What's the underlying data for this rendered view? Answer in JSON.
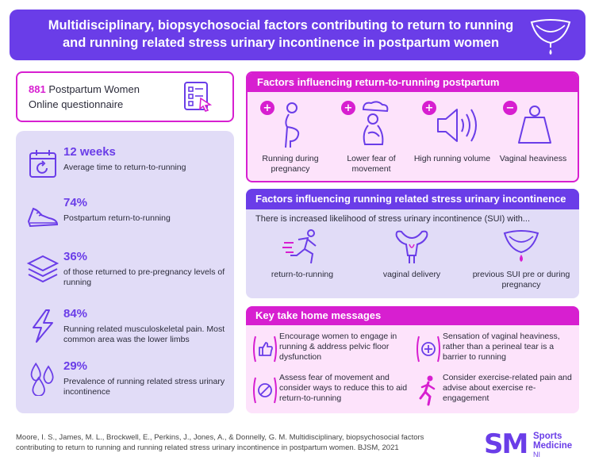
{
  "header": {
    "title_line1": "Multidisciplinary, biopsychosocial factors contributing to return to running",
    "title_line2": "and running related stress urinary incontinence in postpartum women"
  },
  "study": {
    "count": "881",
    "line1_rest": " Postpartum Women",
    "line2": "Online questionnaire"
  },
  "stats": [
    {
      "value": "12 weeks",
      "description": "Average time to return-to-running",
      "icon": "calendar-icon"
    },
    {
      "value": "74%",
      "description": "Postpartum return-to-running",
      "icon": "running-shoe-icon"
    },
    {
      "value": "36%",
      "description": "of those returned to pre-pregnancy levels of running",
      "icon": "layers-icon"
    },
    {
      "value": "84%",
      "description": "Running related musculoskeletal pain. Most common area was the lower limbs",
      "icon": "lightning-icon"
    },
    {
      "value": "29%",
      "description": "Prevalence of running related stress urinary incontinence",
      "icon": "droplets-icon"
    }
  ],
  "rtr_factors": {
    "title": "Factors influencing return-to-running postpartum",
    "items": [
      {
        "sign": "+",
        "label": "Running during pregnancy",
        "icon": "pregnant-woman-icon"
      },
      {
        "sign": "+",
        "label": "Lower fear of movement",
        "icon": "worried-person-icon"
      },
      {
        "sign": "+",
        "label": "High running volume",
        "icon": "speaker-volume-icon"
      },
      {
        "sign": "−",
        "label": "Vaginal heaviness",
        "icon": "weight-icon"
      }
    ]
  },
  "sui_factors": {
    "title": "Factors influencing running related stress urinary incontinence",
    "intro": "There is increased likelihood of stress urinary incontinence (SUI) with...",
    "items": [
      {
        "label": "return-to-running",
        "icon": "runner-icon"
      },
      {
        "label": "vaginal delivery",
        "icon": "uterus-icon"
      },
      {
        "label": "previous SUI pre or during pregnancy",
        "icon": "pelvic-floor-icon"
      }
    ]
  },
  "key_messages": {
    "title": "Key take home messages",
    "items": [
      {
        "text": "Encourage women to engage in running & address pelvic floor dysfunction",
        "icon": "thumbs-up-icon"
      },
      {
        "text": "Sensation of vaginal heaviness, rather than a perineal tear is a barrier to running",
        "icon": "target-icon"
      },
      {
        "text": "Assess fear of movement and consider ways to reduce this to aid return-to-running",
        "icon": "no-fear-icon"
      },
      {
        "text": "Consider exercise-related pain and advise about exercise re-engagement",
        "icon": "running-woman-icon"
      }
    ]
  },
  "citation": {
    "line1": "Moore, I. S., James, M. L., Brockwell, E., Perkins, J., Jones, A., & Donnelly, G. M.  Multidisciplinary, biopsychosocial factors",
    "line2": "contributing to return to running and running related stress urinary incontinence in postpartum women. BJSM, 2021"
  },
  "logo": {
    "mark": "SM",
    "line1": "Sports",
    "line2": "Medicine",
    "line3": "NI"
  },
  "colors": {
    "purple": "#6a3de8",
    "magenta": "#d71fd0",
    "lavender": "#e1dcf7",
    "pink": "#fde3fb"
  }
}
